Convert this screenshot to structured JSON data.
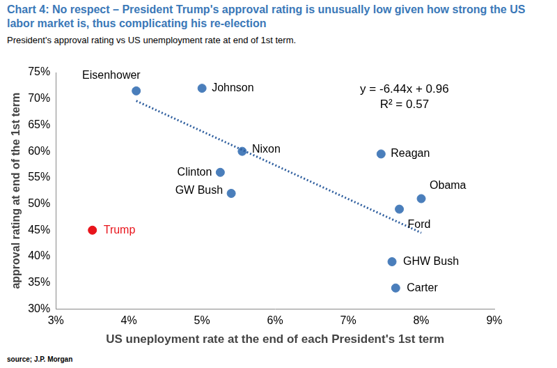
{
  "chart_data": {
    "type": "scatter",
    "title": "Chart 4: No respect – President Trump's approval rating is unusually low given how strong the US labor market is, thus complicating his re-election",
    "subtitle": "President's approval rating vs US unemployment rate at end of 1st term.",
    "source": "source; J.P. Morgan",
    "x_label": "US uneployment rate at the end of each President's 1st term",
    "y_label": "approval rating at end of the 1st term",
    "point_labels": [
      "Eisenhower",
      "Johnson",
      "Nixon",
      "Clinton",
      "GW Bush",
      "Reagan",
      "Obama",
      "Ford",
      "Trump",
      "GHW Bush",
      "Carter"
    ],
    "x": [
      4.1,
      5.0,
      5.55,
      5.25,
      5.4,
      7.45,
      8.0,
      7.7,
      3.5,
      7.6,
      7.65
    ],
    "values": [
      71.5,
      72,
      60,
      56,
      52,
      59.5,
      51,
      49,
      45,
      39,
      34
    ],
    "colors": [
      "#4a7ebb",
      "#4a7ebb",
      "#4a7ebb",
      "#4a7ebb",
      "#4a7ebb",
      "#4a7ebb",
      "#4a7ebb",
      "#4a7ebb",
      "#e8141b",
      "#4a7ebb",
      "#4a7ebb"
    ],
    "marker": "circle",
    "trendline": {
      "x": [
        4.1,
        8.0
      ],
      "y": [
        69.6,
        44.5
      ],
      "color": "#2e5e9e",
      "line_style": "dotted"
    },
    "annotations": [
      "y = -6.44x + 0.96",
      "R² = 0.57"
    ],
    "xlim": [
      3,
      9
    ],
    "xticks": [
      {
        "value": 3,
        "label": "3%"
      },
      {
        "value": 4,
        "label": "4%"
      },
      {
        "value": 5,
        "label": "5%"
      },
      {
        "value": 6,
        "label": "6%"
      },
      {
        "value": 7,
        "label": "7%"
      },
      {
        "value": 8,
        "label": "8%"
      },
      {
        "value": 9,
        "label": "9%"
      }
    ],
    "ylim": [
      30,
      75
    ],
    "yticks": [
      {
        "value": 30,
        "label": "30%"
      },
      {
        "value": 35,
        "label": "35%"
      },
      {
        "value": 40,
        "label": "40%"
      },
      {
        "value": 45,
        "label": "45%"
      },
      {
        "value": 50,
        "label": "50%"
      },
      {
        "value": 55,
        "label": "55%"
      },
      {
        "value": 60,
        "label": "60%"
      },
      {
        "value": 65,
        "label": "65%"
      },
      {
        "value": 70,
        "label": "70%"
      },
      {
        "value": 75,
        "label": "75%"
      }
    ],
    "grid": false
  }
}
